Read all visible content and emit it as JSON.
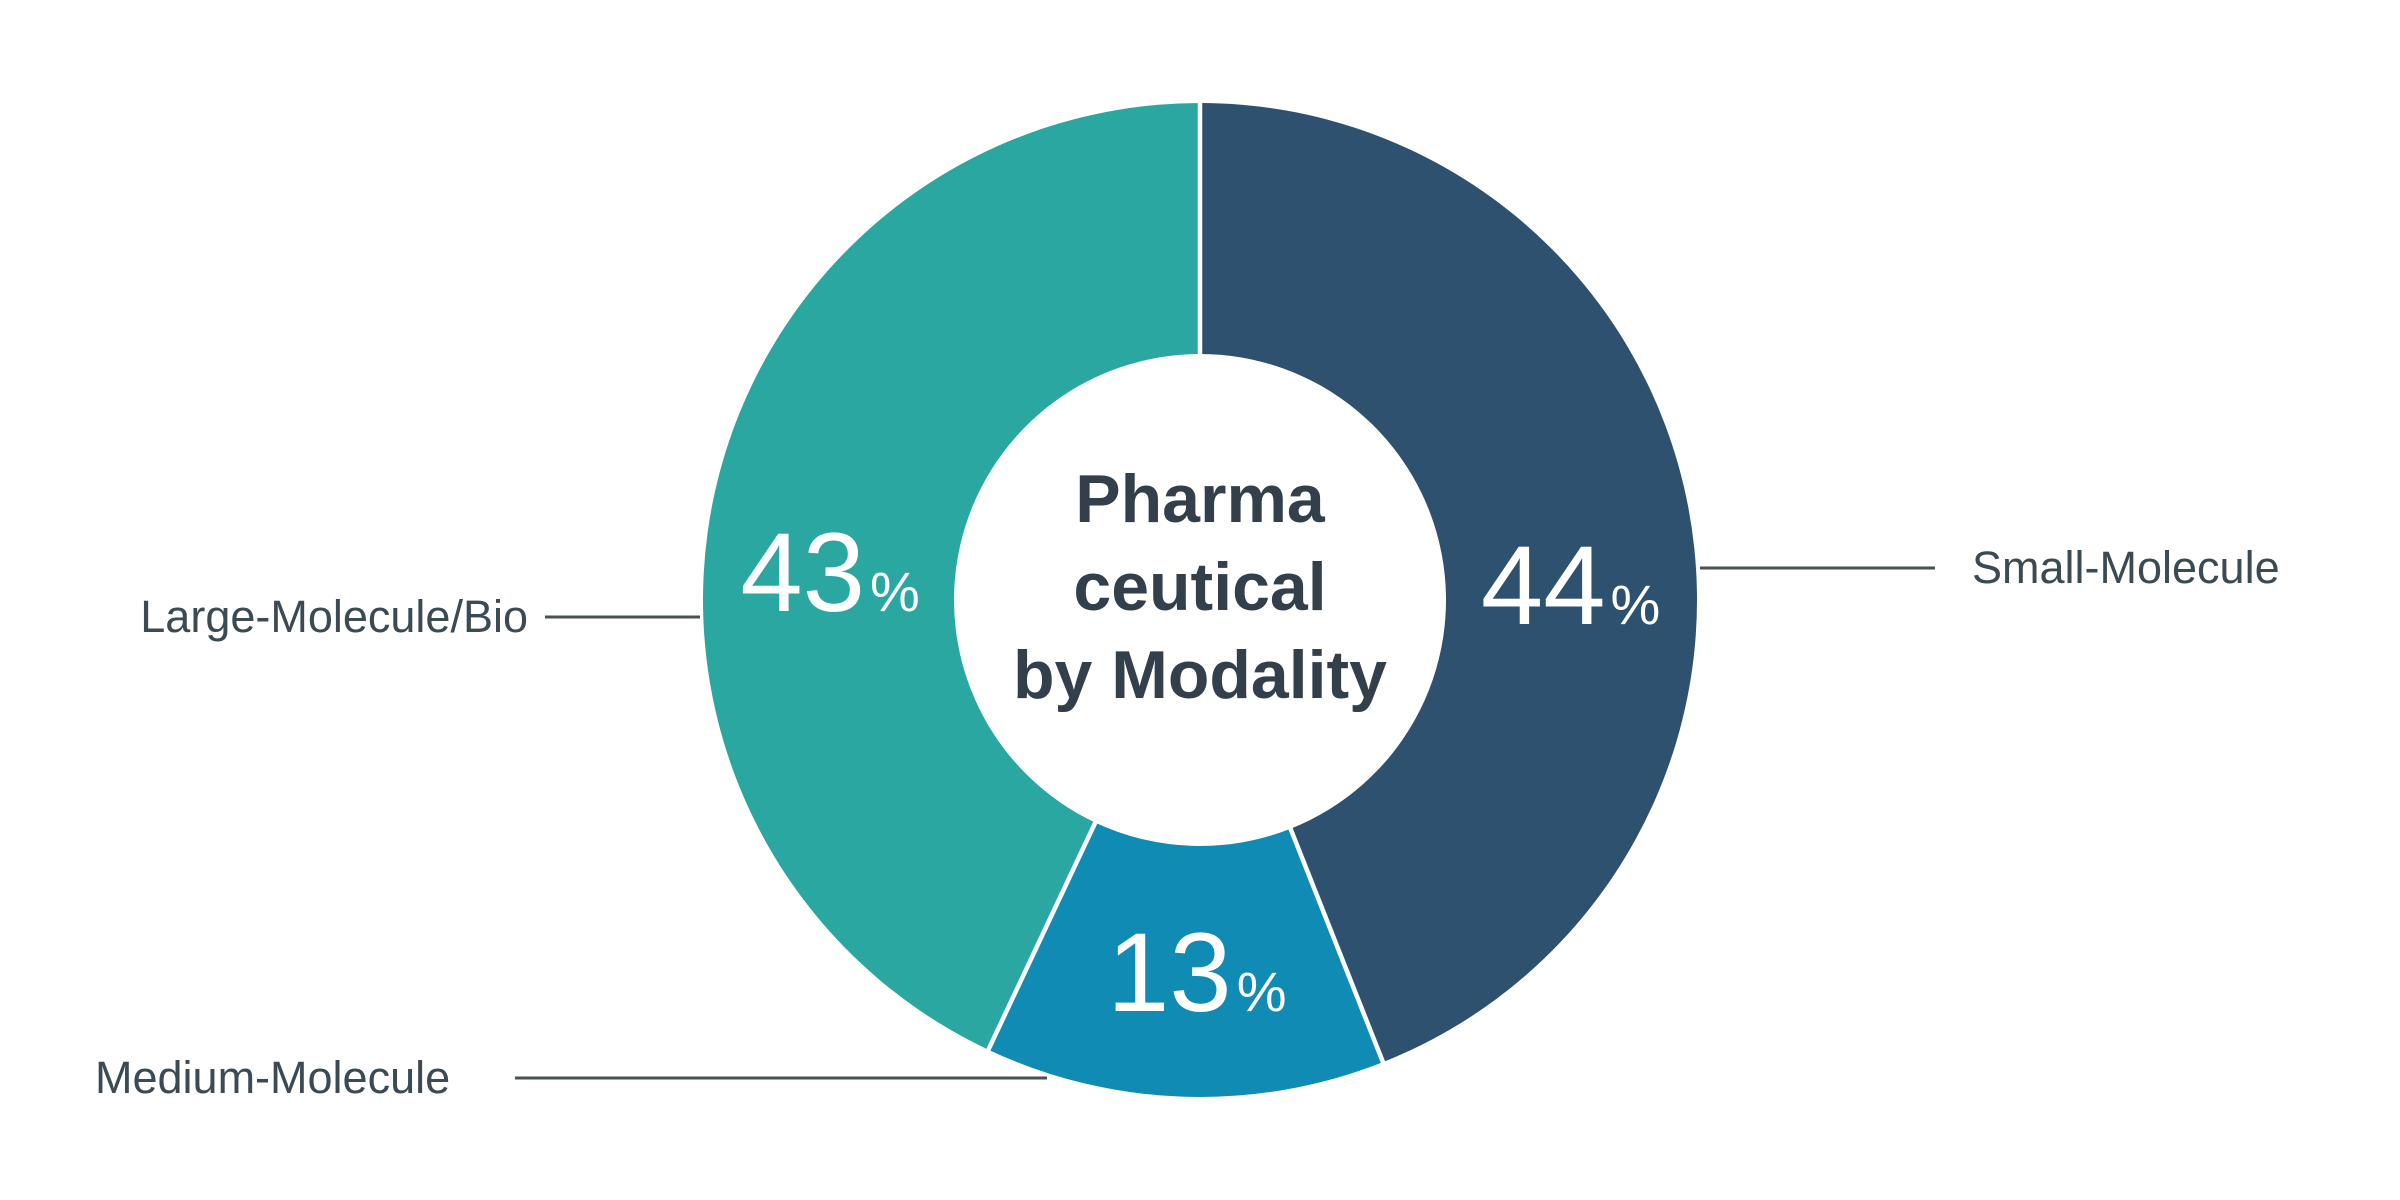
{
  "chart_data": {
    "type": "pie",
    "variant": "donut",
    "title": "Pharmaceutical by Modality",
    "center_title_lines": [
      "Pharma",
      "ceutical",
      "by Modality"
    ],
    "unit": "%",
    "direction": "clockwise",
    "start_angle": "12 o'clock",
    "legend": "none (callout labels with leader lines)",
    "segments": [
      {
        "label": "Small-Molecule",
        "value": 44,
        "color": "#2f5170"
      },
      {
        "label": "Medium-Molecule",
        "value": 13,
        "color": "#108bb4"
      },
      {
        "label": "Large-Molecule/Bio",
        "value": 43,
        "color": "#2aa7a0"
      }
    ]
  },
  "colors": {
    "background": "#ffffff",
    "center_title_text": "#333f4b",
    "callout_text": "#3c4a54",
    "leader_line": "#4a5254",
    "percent_text": "#ffffff",
    "segment_divider": "#ffffff"
  }
}
